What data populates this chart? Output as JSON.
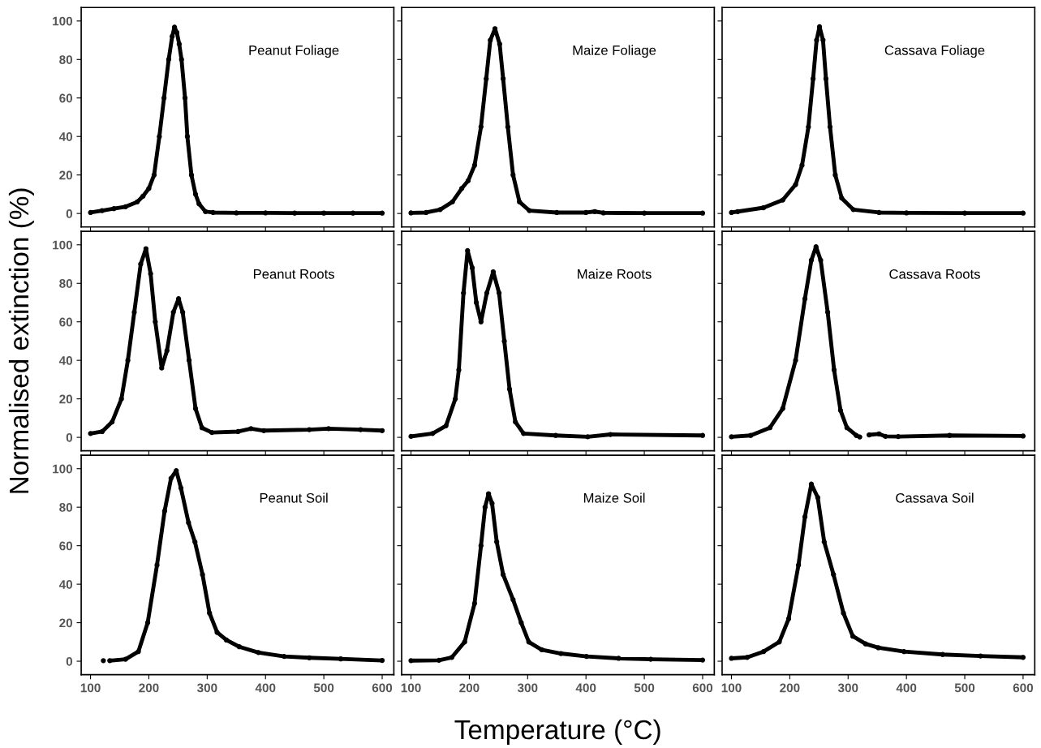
{
  "chart_data": [
    {
      "type": "line",
      "annotations": [
        "Peanut Foliage"
      ],
      "tick_labels": "y",
      "marker": "circle",
      "line_style": "solid",
      "xlim": [
        84,
        620
      ],
      "xticks": [
        100,
        200,
        300,
        400,
        500,
        600
      ],
      "ylim": [
        -7,
        107
      ],
      "yticks": [
        0,
        20,
        40,
        60,
        80,
        100
      ],
      "series": [
        {
          "color": "#000000",
          "x": [
            100,
            120,
            140,
            160,
            180,
            190,
            200,
            209,
            218,
            226,
            234,
            240,
            244,
            248,
            252,
            256,
            262,
            266,
            273,
            280,
            286,
            297,
            310,
            350,
            400,
            450,
            500,
            550,
            600
          ],
          "values": [
            0.5,
            1.5,
            2.5,
            3.5,
            6,
            9,
            13,
            20,
            40,
            60,
            80,
            92,
            96.8,
            94,
            88,
            80,
            60,
            40,
            20,
            10,
            5,
            1,
            0.5,
            0.3,
            0.3,
            0.2,
            0.2,
            0.2,
            0.2
          ]
        }
      ]
    },
    {
      "type": "line",
      "annotations": [
        "Maize Foliage"
      ],
      "tick_labels": false,
      "marker": "circle",
      "line_style": "solid",
      "xlim": [
        84,
        620
      ],
      "xticks": [
        100,
        200,
        300,
        400,
        500,
        600
      ],
      "ylim": [
        -7,
        107
      ],
      "yticks": [
        0,
        20,
        40,
        60,
        80,
        100
      ],
      "series": [
        {
          "color": "#000000",
          "x": [
            100,
            126,
            150,
            171,
            187,
            198,
            209,
            220,
            229,
            236,
            244,
            252,
            258,
            266,
            275,
            286,
            303,
            350,
            400,
            415,
            430,
            500,
            600
          ],
          "values": [
            0.3,
            0.5,
            2,
            6,
            13,
            17,
            25,
            45,
            70,
            90,
            96,
            88,
            70,
            45,
            20,
            6,
            1.5,
            0.5,
            0.5,
            1,
            0.3,
            0.2,
            0.2
          ]
        }
      ]
    },
    {
      "type": "line",
      "annotations": [
        "Cassava Foliage"
      ],
      "tick_labels": false,
      "marker": "circle",
      "line_style": "solid",
      "xlim": [
        84,
        620
      ],
      "xticks": [
        100,
        200,
        300,
        400,
        500,
        600
      ],
      "ylim": [
        -7,
        107
      ],
      "yticks": [
        0,
        20,
        40,
        60,
        80,
        100
      ],
      "series": [
        {
          "color": "#000000",
          "x": [
            100,
            111,
            155,
            188,
            210,
            221,
            232,
            240,
            246,
            251,
            257,
            262,
            269,
            278,
            289,
            309,
            353,
            400,
            500,
            600
          ],
          "values": [
            0.5,
            1,
            3,
            7,
            15,
            25,
            45,
            70,
            90,
            97,
            90,
            70,
            45,
            20,
            8,
            2,
            0.5,
            0.3,
            0.2,
            0.2
          ]
        }
      ]
    },
    {
      "type": "line",
      "annotations": [
        "Peanut Roots"
      ],
      "ylabel": "Normalised extinction (%)",
      "tick_labels": "y",
      "marker": "circle",
      "line_style": "solid",
      "xlim": [
        84,
        620
      ],
      "xticks": [
        100,
        200,
        300,
        400,
        500,
        600
      ],
      "ylim": [
        -7,
        107
      ],
      "yticks": [
        0,
        20,
        40,
        60,
        80,
        100
      ],
      "series": [
        {
          "color": "#000000",
          "x": [
            100,
            120,
            137,
            153,
            164,
            175,
            186,
            195,
            203,
            211,
            222,
            231,
            242,
            251,
            258,
            269,
            280,
            291,
            308,
            353,
            375,
            397,
            475,
            508,
            563,
            600
          ],
          "values": [
            2,
            3,
            8,
            20,
            40,
            65,
            90,
            98,
            85,
            60,
            36,
            45,
            65,
            72,
            65,
            40,
            15,
            5,
            2.5,
            3,
            4.5,
            3.5,
            4,
            4.5,
            4,
            3.5
          ]
        }
      ]
    },
    {
      "type": "line",
      "annotations": [
        "Maize Roots"
      ],
      "tick_labels": false,
      "marker": "circle",
      "line_style": "solid",
      "xlim": [
        84,
        620
      ],
      "xticks": [
        100,
        200,
        300,
        400,
        500,
        600
      ],
      "ylim": [
        -7,
        107
      ],
      "yticks": [
        0,
        20,
        40,
        60,
        80,
        100
      ],
      "series": [
        {
          "color": "#000000",
          "x": [
            100,
            137,
            160,
            176,
            182,
            190,
            197,
            205,
            212,
            220,
            230,
            241,
            251,
            260,
            269,
            279,
            293,
            348,
            403,
            442,
            600
          ],
          "values": [
            0.5,
            2,
            6,
            20,
            35,
            75,
            97,
            88,
            70,
            60,
            75,
            86,
            75,
            50,
            25,
            8,
            2,
            1,
            0.3,
            1.5,
            1
          ]
        }
      ]
    },
    {
      "type": "line",
      "annotations": [
        "Cassava Roots"
      ],
      "tick_labels": false,
      "marker": "circle",
      "line_style": "solid",
      "xlim": [
        84,
        620
      ],
      "xticks": [
        100,
        200,
        300,
        400,
        500,
        600
      ],
      "ylim": [
        -7,
        107
      ],
      "yticks": [
        0,
        20,
        40,
        60,
        80,
        100
      ],
      "series": [
        {
          "color": "#000000",
          "x": [
            100,
            133,
            166,
            188,
            210,
            226,
            237,
            245,
            253,
            265,
            276,
            287,
            298,
            314,
            320,
            328,
            336,
            353,
            364,
            386,
            474,
            600
          ],
          "values": [
            0.3,
            1,
            5,
            15,
            40,
            72,
            92,
            99,
            92,
            65,
            35,
            14,
            5,
            1,
            0.2,
            null,
            1.3,
            1.8,
            0.5,
            0.4,
            1,
            0.7
          ]
        }
      ]
    },
    {
      "type": "line",
      "annotations": [
        "Peanut Soil"
      ],
      "tick_labels": null,
      "marker": "circle",
      "line_style": "solid",
      "xlim": [
        84,
        620
      ],
      "xticks": [
        100,
        200,
        300,
        400,
        500,
        600
      ],
      "ylim": [
        -7,
        107
      ],
      "yticks": [
        0,
        20,
        40,
        60,
        80,
        100
      ],
      "series": [
        {
          "color": "#000000",
          "x": [
            122,
            127,
            133,
            160,
            182,
            198,
            214,
            227,
            238,
            247,
            255,
            268,
            279,
            292,
            304,
            317,
            333,
            355,
            388,
            432,
            475,
            529,
            600
          ],
          "values": [
            0.3,
            null,
            0.3,
            1,
            5,
            20,
            50,
            78,
            95,
            99,
            90,
            72,
            62,
            45,
            25,
            15,
            11,
            7.5,
            4.5,
            2.5,
            1.8,
            1.2,
            0.4
          ]
        }
      ]
    },
    {
      "type": "line",
      "annotations": [
        "Maize Soil"
      ],
      "xlabel": "Temperature (°C)",
      "tick_labels": "x",
      "marker": "circle",
      "line_style": "solid",
      "xlim": [
        84,
        620
      ],
      "xticks": [
        100,
        200,
        300,
        400,
        500,
        600
      ],
      "ylim": [
        -7,
        107
      ],
      "yticks": [
        0,
        20,
        40,
        60,
        80,
        100
      ],
      "series": [
        {
          "color": "#000000",
          "x": [
            100,
            148,
            170,
            192,
            209,
            220,
            227,
            233,
            239,
            247,
            258,
            275,
            289,
            302,
            324,
            357,
            401,
            456,
            511,
            600
          ],
          "values": [
            0.3,
            0.5,
            2,
            10,
            30,
            60,
            80,
            87,
            82,
            62,
            45,
            32,
            20,
            10,
            6,
            4,
            2.5,
            1.5,
            1,
            0.6
          ]
        }
      ]
    },
    {
      "type": "line",
      "annotations": [
        "Cassava Soil"
      ],
      "tick_labels": "x",
      "marker": "circle",
      "line_style": "solid",
      "xlim": [
        84,
        620
      ],
      "xticks": [
        100,
        200,
        300,
        400,
        500,
        600
      ],
      "ylim": [
        -7,
        107
      ],
      "yticks": [
        0,
        20,
        40,
        60,
        80,
        100
      ],
      "series": [
        {
          "color": "#000000",
          "x": [
            100,
            127,
            155,
            182,
            198,
            215,
            226,
            237,
            248,
            259,
            275,
            292,
            308,
            330,
            352,
            396,
            462,
            527,
            600
          ],
          "values": [
            1.5,
            2,
            5,
            10,
            22,
            50,
            75,
            92,
            85,
            62,
            45,
            25,
            13,
            9,
            7,
            5,
            3.5,
            2.7,
            2
          ]
        }
      ]
    }
  ]
}
